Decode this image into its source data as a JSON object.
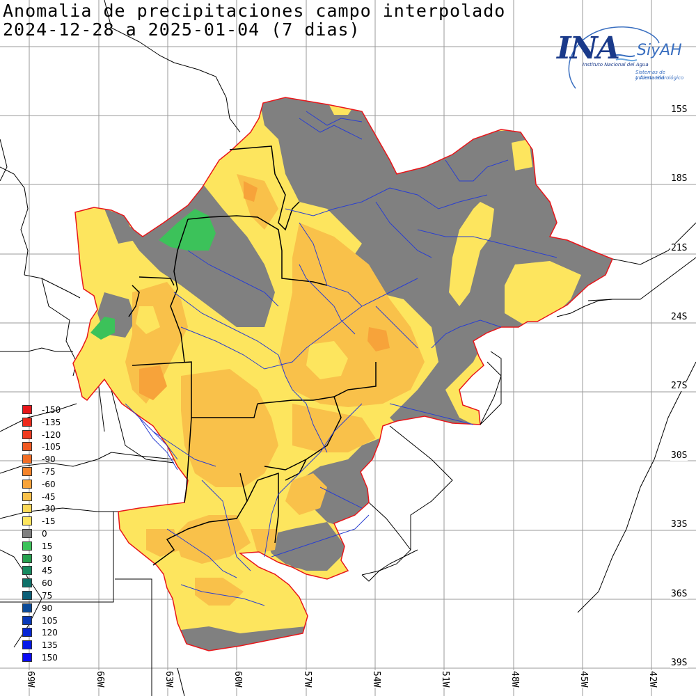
{
  "title": {
    "line1": "Anomalia de precipitaciones campo interpolado",
    "line2": "2024-12-28 a 2025-01-04 (7 dias)"
  },
  "logo": {
    "main": "INA",
    "secondary": "SiyAH",
    "sub1": "Instituto Nacional del Agua",
    "sub2": "Sistemas de Información",
    "sub3": "y Alerta Hidrológico"
  },
  "axes": {
    "lat_labels": [
      "15S",
      "18S",
      "21S",
      "24S",
      "27S",
      "30S",
      "33S",
      "36S",
      "39S"
    ],
    "lon_labels": [
      "69W",
      "66W",
      "63W",
      "60W",
      "57W",
      "54W",
      "51W",
      "48W",
      "45W",
      "42W"
    ]
  },
  "legend": [
    {
      "label": "-150",
      "color": "#e8161a"
    },
    {
      "label": "-135",
      "color": "#ec2a1c"
    },
    {
      "label": "-120",
      "color": "#ef3b20"
    },
    {
      "label": "-105",
      "color": "#f15a22"
    },
    {
      "label": "-90",
      "color": "#f26e26"
    },
    {
      "label": "-75",
      "color": "#f5842a"
    },
    {
      "label": "-60",
      "color": "#f7a33a"
    },
    {
      "label": "-45",
      "color": "#f9c14a"
    },
    {
      "label": "-30",
      "color": "#fbd957"
    },
    {
      "label": "-15",
      "color": "#fde55e"
    },
    {
      "label": "0",
      "color": "#808080"
    },
    {
      "label": "15",
      "color": "#3cc25a"
    },
    {
      "label": "30",
      "color": "#25a04e"
    },
    {
      "label": "45",
      "color": "#168a60"
    },
    {
      "label": "60",
      "color": "#0e7068"
    },
    {
      "label": "75",
      "color": "#0b5f78"
    },
    {
      "label": "90",
      "color": "#0a4a98"
    },
    {
      "label": "105",
      "color": "#0838b8"
    },
    {
      "label": "120",
      "color": "#0626d4"
    },
    {
      "label": "135",
      "color": "#0418e8"
    },
    {
      "label": "150",
      "color": "#0a0af5"
    }
  ],
  "colors": {
    "gray_zero": "#808080",
    "yellow": "#fde55e",
    "orange_light": "#f9c14a",
    "orange": "#f7a33a",
    "green": "#3cc25a",
    "outline": "#e8161a",
    "rivers": "#2a3fd0",
    "grid": "#9a9a9a"
  }
}
